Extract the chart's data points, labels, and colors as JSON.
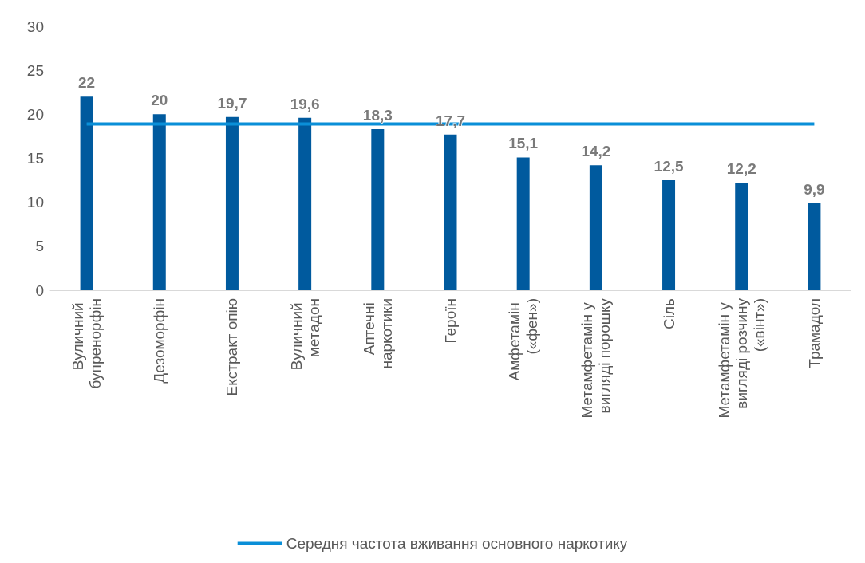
{
  "chart_data": {
    "type": "bar",
    "categories": [
      "Вуличний бупренорфін",
      "Дезоморфін",
      "Екстракт опію",
      "Вуличний метадон",
      "Аптечні наркотики",
      "Героїн",
      "Амфетамін («фен»)",
      "Метамфетамін у вигляді порошку",
      "Сіль",
      "Метамфетамін у вигляді розчину («вінт»)",
      "Трамадол"
    ],
    "series": [
      {
        "color": "#005a9e",
        "values": [
          22,
          20,
          19.7,
          19.6,
          18.3,
          17.7,
          15.1,
          14.2,
          12.5,
          12.2,
          9.9
        ],
        "value_labels": [
          "22",
          "20",
          "19,7",
          "19,6",
          "18,3",
          "17,7",
          "15,1",
          "14,2",
          "12,5",
          "12,2",
          "9,9"
        ]
      },
      {
        "type": "line",
        "name": "Середня частота вживання основного наркотику",
        "color": "#0a8fd8",
        "values": [
          18.9,
          18.9,
          18.9,
          18.9,
          18.9,
          18.9,
          18.9,
          18.9,
          18.9,
          18.9,
          18.9
        ]
      }
    ],
    "ylim": [
      0,
      30
    ],
    "yticks": [
      0,
      5,
      10,
      15,
      20,
      25,
      30
    ],
    "grid": false,
    "legend": "bottom",
    "marker": "none"
  }
}
